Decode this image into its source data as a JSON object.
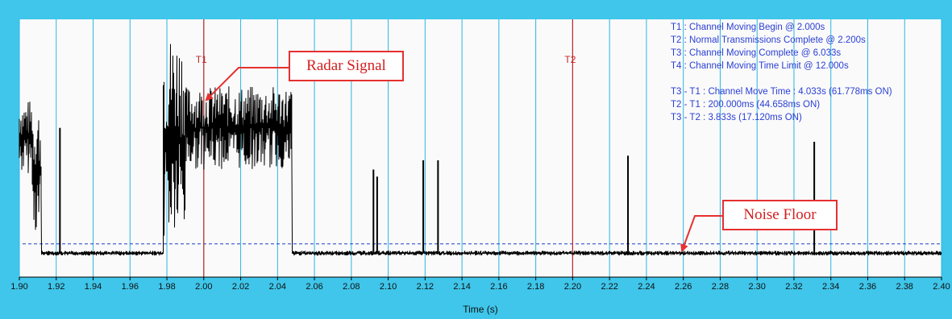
{
  "chart_data": {
    "type": "line",
    "title": "",
    "xlabel": "Time (s)",
    "ylabel": "",
    "xlim": [
      1.9,
      2.4
    ],
    "ylim": [
      0,
      1
    ],
    "grid": true,
    "x_ticks": [
      "1.90",
      "1.92",
      "1.94",
      "1.96",
      "1.98",
      "2.00",
      "2.02",
      "2.04",
      "2.06",
      "2.08",
      "2.10",
      "2.12",
      "2.14",
      "2.16",
      "2.18",
      "2.20",
      "2.22",
      "2.24",
      "2.26",
      "2.28",
      "2.30",
      "2.32",
      "2.34",
      "2.36",
      "2.38",
      "2.40"
    ],
    "noise_floor_level": 0.06,
    "series": [
      {
        "segments": [
          {
            "start": 1.9,
            "end": 1.907,
            "base": 0.52,
            "amp": 0.16
          },
          {
            "start": 1.907,
            "end": 1.912,
            "base": 0.38,
            "amp": 0.28
          },
          {
            "start": 1.912,
            "end": 1.978,
            "base": 0.02,
            "amp": 0.01
          },
          {
            "start": 1.978,
            "end": 1.99,
            "base": 0.52,
            "amp": 0.45
          },
          {
            "start": 1.99,
            "end": 2.048,
            "base": 0.56,
            "amp": 0.18
          },
          {
            "start": 2.048,
            "end": 2.4,
            "base": 0.02,
            "amp": 0.01
          }
        ],
        "spikes": [
          {
            "x": 1.922,
            "y": 0.56
          },
          {
            "x": 2.092,
            "y": 0.38
          },
          {
            "x": 2.094,
            "y": 0.35
          },
          {
            "x": 2.119,
            "y": 0.42
          },
          {
            "x": 2.127,
            "y": 0.42
          },
          {
            "x": 2.23,
            "y": 0.44
          },
          {
            "x": 2.331,
            "y": 0.5
          }
        ]
      }
    ],
    "markers": [
      {
        "label": "T1",
        "x": 2.0
      },
      {
        "label": "T2",
        "x": 2.2
      }
    ],
    "annotations": [
      "T1 : Channel Moving Begin @ 2.000s",
      "T2 : Normal Transmissions Complete @ 2.200s",
      "T3 : Channel Moving Complete @ 6.033s",
      "T4 : Channel Moving Time Limit @ 12.000s",
      "",
      "T3 - T1 : Channel Move Time : 4.033s (61.778ms ON)",
      "T2 - T1 : 200.000ms (44.658ms ON)",
      "T3 - T2 : 3.833s (17.120ms ON)"
    ],
    "callouts": [
      {
        "label": "Radar Signal",
        "target_x": 2.0,
        "target_y": 0.68
      },
      {
        "label": "Noise Floor",
        "target_x": 2.258,
        "target_y": 0.03
      }
    ]
  },
  "colors": {
    "frame": "#3fc6ea",
    "plot_bg": "#fafafa",
    "grid": "#29b6e2",
    "signal": "#000000",
    "marker": "#c62828",
    "info_text": "#2a3fd4",
    "noise_floor_line": "#1a3fc4",
    "callout": "#e53030"
  }
}
